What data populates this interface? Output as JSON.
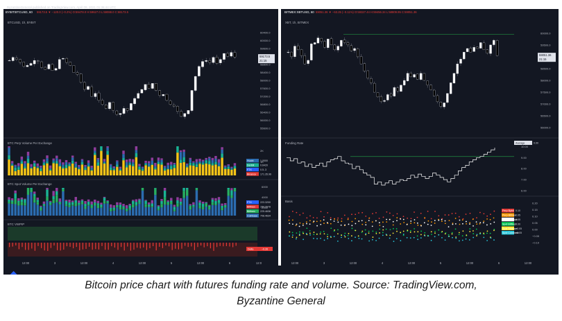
{
  "header": {
    "publisher_line": "ByzantineGeneral published on TradingView.com, April 09, 2021 01:36:44 UTC",
    "left_symbol": "BYBIT:BTCUSD, 60",
    "left_quote": "59173.5 ▼ −120.0 (−0.2%)  O:59478.0  H:59627.0  L:59088.0  C:59173.5",
    "right_symbol": "BITMEX:XBTUSD, 60",
    "right_quote": "59051.36 ▼ −63.25 (−0.11%)  O:59327.44  H:59456.34  L:58809.95  C:59051.36"
  },
  "colors": {
    "background": "#131722",
    "candle_up": "#ffffff",
    "candle_down": "#000000",
    "funding_line": "#ffffff",
    "reference_line": "#1e7b3c",
    "vol_yellow": "#f5c518",
    "vol_teal": "#1ab394",
    "vol_blue": "#2b6cb0",
    "vol_purple": "#8e3d9c",
    "vol_green": "#27ae60",
    "dot_red": "#e53935",
    "dot_orange": "#ff9800",
    "dot_white": "#ffffff",
    "dot_green": "#00c853",
    "dot_yellow": "#ffeb3b",
    "dot_cyan": "#26c6da"
  },
  "chart_data": [
    {
      "type": "candlestick",
      "title": "BTCUSD, 1h, BYBIT",
      "y_ticks": [
        "60400.0",
        "60000.0",
        "59600.0",
        "59200.0",
        "58800.0",
        "58400.0",
        "58000.0",
        "57600.0",
        "57200.0",
        "56800.0",
        "56400.0",
        "56000.0",
        "55600.0"
      ],
      "price_labels": [
        "59173.5",
        "21:15"
      ],
      "x_ticks": [
        "12:00",
        "3",
        "12:00",
        "4",
        "12:00",
        "5",
        "12:00",
        "6",
        "12:0"
      ],
      "close_path": [
        59000,
        59150,
        59050,
        58900,
        58700,
        58750,
        58850,
        59000,
        58950,
        58650,
        58550,
        58800,
        58500,
        58600,
        59050,
        59100,
        58900,
        58750,
        58400,
        58300,
        57900,
        57550,
        57700,
        57200,
        57350,
        57000,
        56800,
        56600,
        56900,
        56500,
        56300,
        56350,
        56600,
        56500,
        56850,
        57100,
        57350,
        57550,
        57800,
        57600,
        57850,
        57500,
        57250,
        57300,
        57000,
        56800,
        56700,
        56450,
        56200,
        56350,
        56500,
        57500,
        58200,
        58700,
        58950,
        59000,
        58900,
        59150,
        58850,
        59050,
        59350,
        59200,
        59400,
        59173.5
      ]
    },
    {
      "type": "stacked-bar",
      "title": "BTC Perp Volume Per Exchange",
      "y_ticks": [
        "2K",
        "1K"
      ],
      "legend": [
        {
          "name": "Huobi",
          "value": "1.0000"
        },
        {
          "name": "Deribit",
          "value": "0.6420"
        },
        {
          "name": "FTX",
          "value": "0.5..3"
        },
        {
          "name": "Binance",
          "value": "171.35.96"
        }
      ]
    },
    {
      "type": "stacked-bar",
      "title": "BTC Spot Volume Per Exchange",
      "y_ticks": [
        "6000",
        "4000",
        "2000"
      ],
      "legend": [
        {
          "name": "FTX",
          "value": "223.3200"
        },
        {
          "name": "Bitfinex",
          "value": "154.2078"
        },
        {
          "name": "Bitfinex",
          "value": "225.4636"
        },
        {
          "name": "Coinbase",
          "value": "708.4634"
        }
      ]
    },
    {
      "type": "bar",
      "title": "BTC VWPIP",
      "legend": [
        {
          "name": "Delta",
          "value": "−0.26"
        }
      ]
    },
    {
      "type": "candlestick",
      "title": "XBT, 1h, BITMEX",
      "y_ticks": [
        "60000.0",
        "59500.0",
        "59000.0",
        "58500.0",
        "58000.0",
        "57500.0",
        "57000.0",
        "56500.0",
        "56000.0"
      ],
      "price_labels": [
        "59051.36",
        "21:15"
      ],
      "x_ticks": [
        "12:00",
        "3",
        "12:00",
        "4",
        "12:00",
        "5",
        "12:00",
        "6",
        "12:00"
      ],
      "close_path": [
        59200,
        59000,
        59450,
        59300,
        59050,
        58700,
        58850,
        59550,
        59600,
        59800,
        59650,
        59400,
        59750,
        59500,
        59300,
        59450,
        59700,
        59600,
        59500,
        59250,
        59350,
        59000,
        58700,
        58400,
        58100,
        57900,
        57500,
        57300,
        57100,
        57150,
        57400,
        57350,
        57700,
        57550,
        57800,
        58000,
        58300,
        58150,
        58250,
        58050,
        58300,
        58000,
        57800,
        57600,
        57350,
        57100,
        56900,
        57050,
        57450,
        57900,
        58300,
        58700,
        58900,
        59200,
        59350,
        59200,
        59400,
        59350,
        59600,
        59300,
        59150,
        59500,
        59700,
        59051.36
      ]
    },
    {
      "type": "line",
      "title": "Funding Rate",
      "y_ticks": [
        "10.00",
        "9.00",
        "8.00",
        "7.00",
        "6.00"
      ],
      "legend": [
        {
          "name": "Average",
          "value": "0.00"
        }
      ],
      "values": [
        9.0,
        8.7,
        8.9,
        8.5,
        8.6,
        8.2,
        8.4,
        8.1,
        8.3,
        8.5,
        8.2,
        8.6,
        8.8,
        8.9,
        9.1,
        8.7,
        8.5,
        8.4,
        8.0,
        8.2,
        7.9,
        7.6,
        7.4,
        7.2,
        6.6,
        6.8,
        6.5,
        6.7,
        6.9,
        6.6,
        6.8,
        7.0,
        6.9,
        7.1,
        7.4,
        7.2,
        7.5,
        7.3,
        7.1,
        7.3,
        7.6,
        7.4,
        7.2,
        7.0,
        6.8,
        7.1,
        7.4,
        7.8,
        8.1,
        8.3,
        8.6,
        8.8,
        9.0,
        9.1,
        9.3,
        9.5,
        9.7,
        9.9
      ]
    },
    {
      "type": "scatter",
      "title": "Basis",
      "y_ticks": [
        "0.20",
        "0.15",
        "0.10",
        "0.05",
        "0.00",
        "−0.05",
        "−0.10"
      ],
      "legend": [
        {
          "name": "Perp Bybit",
          "value": "0.10"
        },
        {
          "name": "Perp Bitmex",
          "value": "0.05"
        },
        {
          "name": "Perp Binance",
          "value": "0.05"
        },
        {
          "name": "Spot Bitfinex",
          "value": "0.00"
        },
        {
          "name": "Spot Binance",
          "value": "−0.05"
        },
        {
          "name": "Spot Coinbase",
          "value": "−0.05"
        }
      ]
    }
  ],
  "caption": {
    "line1": "Bitcoin price chart with futures funding rate and volume. Source: TradingView.com,",
    "line2": "Byzantine General"
  }
}
